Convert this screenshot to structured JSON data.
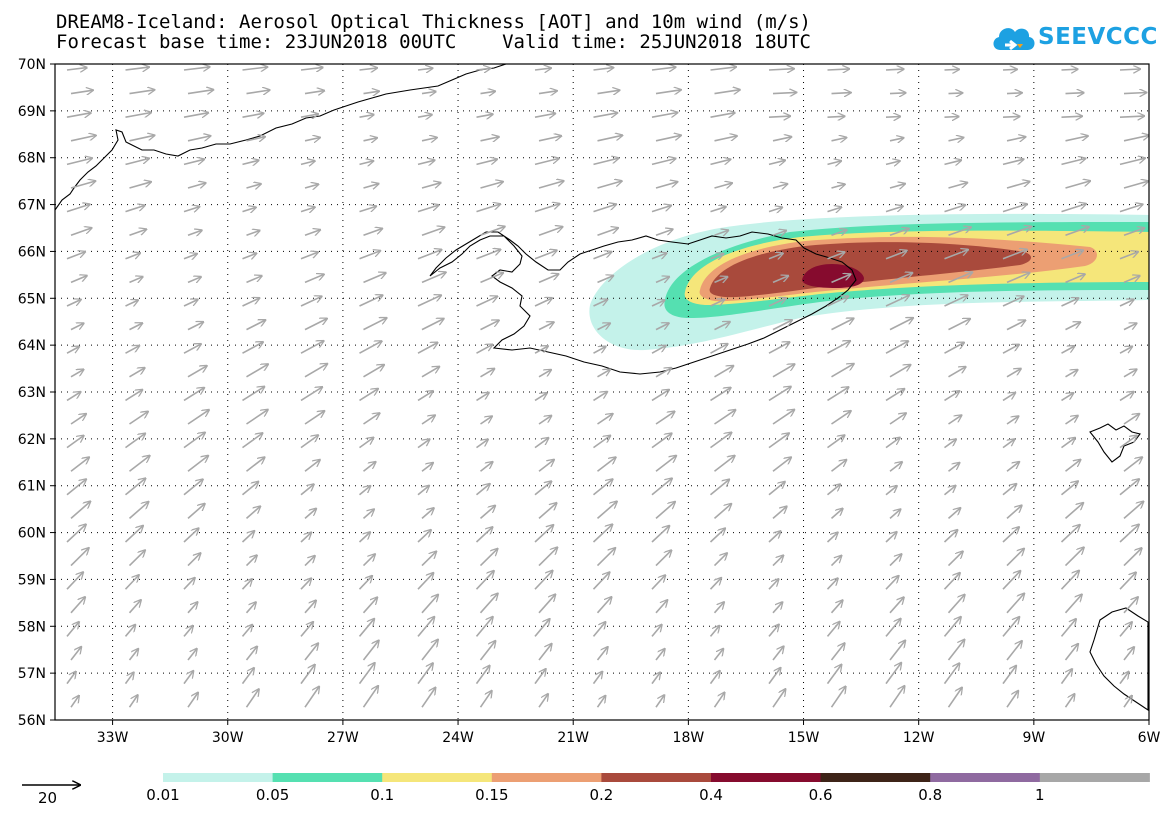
{
  "title": {
    "line1": "DREAM8-Iceland: Aerosol Optical Thickness [AOT] and 10m wind (m/s)",
    "line2": "Forecast base time: 23JUN2018 00UTC    Valid time: 25JUN2018 18UTC"
  },
  "logo": {
    "text": "SEEVCCC",
    "icon": "cloud-icon"
  },
  "map": {
    "lat_range": [
      56,
      70
    ],
    "lon_range": [
      -34.5,
      -6
    ],
    "lat_labels": [
      "70N",
      "69N",
      "68N",
      "67N",
      "66N",
      "65N",
      "64N",
      "63N",
      "62N",
      "61N",
      "60N",
      "59N",
      "58N",
      "57N",
      "56N"
    ],
    "lon_labels": [
      "33W",
      "30W",
      "27W",
      "24W",
      "21W",
      "18W",
      "15W",
      "12W",
      "9W",
      "6W"
    ],
    "grid": "dotted",
    "wind_vector_color": "#a8a8a8",
    "coastline_color": "#000000"
  },
  "colorbar": {
    "labels": [
      "0.01",
      "0.05",
      "0.1",
      "0.15",
      "0.2",
      "0.4",
      "0.6",
      "0.8",
      "1"
    ],
    "colors": [
      "#c4f2ea",
      "#55e0b1",
      "#f5e67a",
      "#ec9f73",
      "#a94a3c",
      "#860b2e",
      "#3e2418",
      "#8f6aa0",
      "#a7a7a7"
    ]
  },
  "reference_vector": {
    "label": "20"
  }
}
